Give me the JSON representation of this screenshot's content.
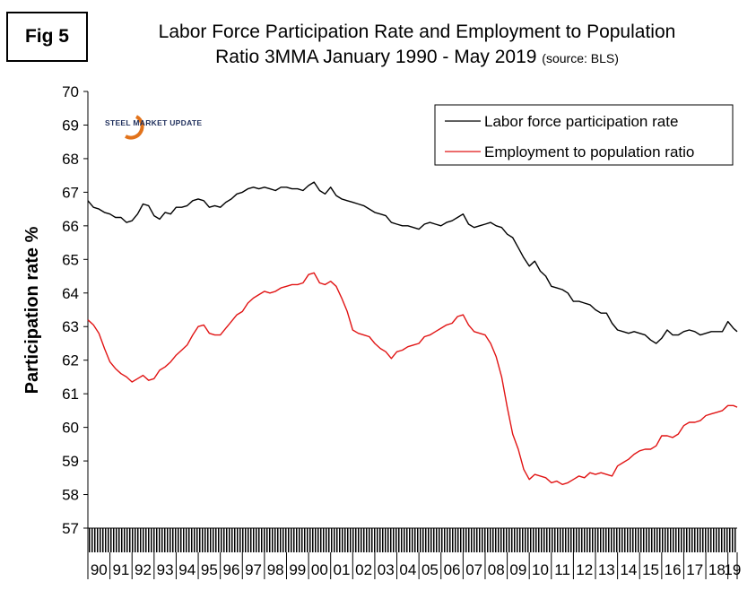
{
  "figure_label": "Fig 5",
  "title_line1": "Labor Force Participation Rate and Employment to Population",
  "title_line2": "Ratio 3MMA January 1990 - May 2019",
  "title_source": "(source: BLS)",
  "logo": {
    "text": "STEEL MARKET UPDATE",
    "color": "#e2731b"
  },
  "chart_data": {
    "type": "line",
    "ylabel": "Participation rate %",
    "xlabel": "",
    "ylim": [
      57,
      70
    ],
    "yticks": [
      57,
      58,
      59,
      60,
      61,
      62,
      63,
      64,
      65,
      66,
      67,
      68,
      69,
      70
    ],
    "xlim": [
      1990.0,
      2019.42
    ],
    "xticklabels": [
      "90",
      "91",
      "92",
      "93",
      "94",
      "95",
      "96",
      "97",
      "98",
      "99",
      "00",
      "01",
      "02",
      "03",
      "04",
      "05",
      "06",
      "07",
      "08",
      "09",
      "10",
      "11",
      "12",
      "13",
      "14",
      "15",
      "16",
      "17",
      "18",
      "19"
    ],
    "grid": false,
    "legend_position": "top-right",
    "series": [
      {
        "name": "Labor force participation rate",
        "color": "#000000",
        "points": [
          [
            1990.0,
            66.75
          ],
          [
            1990.25,
            66.55
          ],
          [
            1990.5,
            66.5
          ],
          [
            1990.75,
            66.4
          ],
          [
            1991.0,
            66.35
          ],
          [
            1991.25,
            66.25
          ],
          [
            1991.5,
            66.25
          ],
          [
            1991.75,
            66.1
          ],
          [
            1992.0,
            66.15
          ],
          [
            1992.25,
            66.35
          ],
          [
            1992.5,
            66.65
          ],
          [
            1992.75,
            66.6
          ],
          [
            1993.0,
            66.3
          ],
          [
            1993.25,
            66.2
          ],
          [
            1993.5,
            66.4
          ],
          [
            1993.75,
            66.35
          ],
          [
            1994.0,
            66.55
          ],
          [
            1994.25,
            66.55
          ],
          [
            1994.5,
            66.6
          ],
          [
            1994.75,
            66.75
          ],
          [
            1995.0,
            66.8
          ],
          [
            1995.25,
            66.75
          ],
          [
            1995.5,
            66.55
          ],
          [
            1995.75,
            66.6
          ],
          [
            1996.0,
            66.55
          ],
          [
            1996.25,
            66.7
          ],
          [
            1996.5,
            66.8
          ],
          [
            1996.75,
            66.95
          ],
          [
            1997.0,
            67.0
          ],
          [
            1997.25,
            67.1
          ],
          [
            1997.5,
            67.15
          ],
          [
            1997.75,
            67.1
          ],
          [
            1998.0,
            67.15
          ],
          [
            1998.25,
            67.1
          ],
          [
            1998.5,
            67.05
          ],
          [
            1998.75,
            67.15
          ],
          [
            1999.0,
            67.15
          ],
          [
            1999.25,
            67.1
          ],
          [
            1999.5,
            67.1
          ],
          [
            1999.75,
            67.05
          ],
          [
            2000.0,
            67.2
          ],
          [
            2000.25,
            67.3
          ],
          [
            2000.5,
            67.05
          ],
          [
            2000.75,
            66.95
          ],
          [
            2001.0,
            67.15
          ],
          [
            2001.25,
            66.9
          ],
          [
            2001.5,
            66.8
          ],
          [
            2001.75,
            66.75
          ],
          [
            2002.0,
            66.7
          ],
          [
            2002.25,
            66.65
          ],
          [
            2002.5,
            66.6
          ],
          [
            2002.75,
            66.5
          ],
          [
            2003.0,
            66.4
          ],
          [
            2003.25,
            66.35
          ],
          [
            2003.5,
            66.3
          ],
          [
            2003.75,
            66.1
          ],
          [
            2004.0,
            66.05
          ],
          [
            2004.25,
            66.0
          ],
          [
            2004.5,
            66.0
          ],
          [
            2004.75,
            65.95
          ],
          [
            2005.0,
            65.9
          ],
          [
            2005.25,
            66.05
          ],
          [
            2005.5,
            66.1
          ],
          [
            2005.75,
            66.05
          ],
          [
            2006.0,
            66.0
          ],
          [
            2006.25,
            66.1
          ],
          [
            2006.5,
            66.15
          ],
          [
            2006.75,
            66.25
          ],
          [
            2007.0,
            66.35
          ],
          [
            2007.25,
            66.05
          ],
          [
            2007.5,
            65.95
          ],
          [
            2007.75,
            66.0
          ],
          [
            2008.0,
            66.05
          ],
          [
            2008.25,
            66.1
          ],
          [
            2008.5,
            66.0
          ],
          [
            2008.75,
            65.95
          ],
          [
            2009.0,
            65.75
          ],
          [
            2009.25,
            65.65
          ],
          [
            2009.5,
            65.35
          ],
          [
            2009.75,
            65.05
          ],
          [
            2010.0,
            64.8
          ],
          [
            2010.25,
            64.95
          ],
          [
            2010.5,
            64.65
          ],
          [
            2010.75,
            64.5
          ],
          [
            2011.0,
            64.2
          ],
          [
            2011.25,
            64.15
          ],
          [
            2011.5,
            64.1
          ],
          [
            2011.75,
            64.0
          ],
          [
            2012.0,
            63.75
          ],
          [
            2012.25,
            63.75
          ],
          [
            2012.5,
            63.7
          ],
          [
            2012.75,
            63.65
          ],
          [
            2013.0,
            63.5
          ],
          [
            2013.25,
            63.4
          ],
          [
            2013.5,
            63.4
          ],
          [
            2013.75,
            63.1
          ],
          [
            2014.0,
            62.9
          ],
          [
            2014.25,
            62.85
          ],
          [
            2014.5,
            62.8
          ],
          [
            2014.75,
            62.85
          ],
          [
            2015.0,
            62.8
          ],
          [
            2015.25,
            62.75
          ],
          [
            2015.5,
            62.6
          ],
          [
            2015.75,
            62.5
          ],
          [
            2016.0,
            62.65
          ],
          [
            2016.25,
            62.9
          ],
          [
            2016.5,
            62.75
          ],
          [
            2016.75,
            62.75
          ],
          [
            2017.0,
            62.85
          ],
          [
            2017.25,
            62.9
          ],
          [
            2017.5,
            62.85
          ],
          [
            2017.75,
            62.75
          ],
          [
            2018.0,
            62.8
          ],
          [
            2018.25,
            62.85
          ],
          [
            2018.5,
            62.85
          ],
          [
            2018.75,
            62.85
          ],
          [
            2019.0,
            63.15
          ],
          [
            2019.25,
            62.95
          ],
          [
            2019.42,
            62.85
          ]
        ]
      },
      {
        "name": "Employment to population ratio",
        "color": "#e11414",
        "points": [
          [
            1990.0,
            63.2
          ],
          [
            1990.25,
            63.05
          ],
          [
            1990.5,
            62.8
          ],
          [
            1990.75,
            62.35
          ],
          [
            1991.0,
            61.95
          ],
          [
            1991.25,
            61.75
          ],
          [
            1991.5,
            61.6
          ],
          [
            1991.75,
            61.5
          ],
          [
            1992.0,
            61.35
          ],
          [
            1992.25,
            61.45
          ],
          [
            1992.5,
            61.55
          ],
          [
            1992.75,
            61.4
          ],
          [
            1993.0,
            61.45
          ],
          [
            1993.25,
            61.7
          ],
          [
            1993.5,
            61.8
          ],
          [
            1993.75,
            61.95
          ],
          [
            1994.0,
            62.15
          ],
          [
            1994.25,
            62.3
          ],
          [
            1994.5,
            62.45
          ],
          [
            1994.75,
            62.75
          ],
          [
            1995.0,
            63.0
          ],
          [
            1995.25,
            63.05
          ],
          [
            1995.5,
            62.8
          ],
          [
            1995.75,
            62.75
          ],
          [
            1996.0,
            62.75
          ],
          [
            1996.25,
            62.95
          ],
          [
            1996.5,
            63.15
          ],
          [
            1996.75,
            63.35
          ],
          [
            1997.0,
            63.45
          ],
          [
            1997.25,
            63.7
          ],
          [
            1997.5,
            63.85
          ],
          [
            1997.75,
            63.95
          ],
          [
            1998.0,
            64.05
          ],
          [
            1998.25,
            64.0
          ],
          [
            1998.5,
            64.05
          ],
          [
            1998.75,
            64.15
          ],
          [
            1999.0,
            64.2
          ],
          [
            1999.25,
            64.25
          ],
          [
            1999.5,
            64.25
          ],
          [
            1999.75,
            64.3
          ],
          [
            2000.0,
            64.55
          ],
          [
            2000.25,
            64.6
          ],
          [
            2000.5,
            64.3
          ],
          [
            2000.75,
            64.25
          ],
          [
            2001.0,
            64.35
          ],
          [
            2001.25,
            64.2
          ],
          [
            2001.5,
            63.85
          ],
          [
            2001.75,
            63.45
          ],
          [
            2002.0,
            62.9
          ],
          [
            2002.25,
            62.8
          ],
          [
            2002.5,
            62.75
          ],
          [
            2002.75,
            62.7
          ],
          [
            2003.0,
            62.5
          ],
          [
            2003.25,
            62.35
          ],
          [
            2003.5,
            62.25
          ],
          [
            2003.75,
            62.05
          ],
          [
            2004.0,
            62.25
          ],
          [
            2004.25,
            62.3
          ],
          [
            2004.5,
            62.4
          ],
          [
            2004.75,
            62.45
          ],
          [
            2005.0,
            62.5
          ],
          [
            2005.25,
            62.7
          ],
          [
            2005.5,
            62.75
          ],
          [
            2005.75,
            62.85
          ],
          [
            2006.0,
            62.95
          ],
          [
            2006.25,
            63.05
          ],
          [
            2006.5,
            63.1
          ],
          [
            2006.75,
            63.3
          ],
          [
            2007.0,
            63.35
          ],
          [
            2007.25,
            63.05
          ],
          [
            2007.5,
            62.85
          ],
          [
            2007.75,
            62.8
          ],
          [
            2008.0,
            62.75
          ],
          [
            2008.25,
            62.5
          ],
          [
            2008.5,
            62.1
          ],
          [
            2008.75,
            61.5
          ],
          [
            2009.0,
            60.6
          ],
          [
            2009.25,
            59.8
          ],
          [
            2009.5,
            59.35
          ],
          [
            2009.75,
            58.75
          ],
          [
            2010.0,
            58.45
          ],
          [
            2010.25,
            58.6
          ],
          [
            2010.5,
            58.55
          ],
          [
            2010.75,
            58.5
          ],
          [
            2011.0,
            58.35
          ],
          [
            2011.25,
            58.4
          ],
          [
            2011.5,
            58.3
          ],
          [
            2011.75,
            58.35
          ],
          [
            2012.0,
            58.45
          ],
          [
            2012.25,
            58.55
          ],
          [
            2012.5,
            58.5
          ],
          [
            2012.75,
            58.65
          ],
          [
            2013.0,
            58.6
          ],
          [
            2013.25,
            58.65
          ],
          [
            2013.5,
            58.6
          ],
          [
            2013.75,
            58.55
          ],
          [
            2014.0,
            58.85
          ],
          [
            2014.25,
            58.95
          ],
          [
            2014.5,
            59.05
          ],
          [
            2014.75,
            59.2
          ],
          [
            2015.0,
            59.3
          ],
          [
            2015.25,
            59.35
          ],
          [
            2015.5,
            59.35
          ],
          [
            2015.75,
            59.45
          ],
          [
            2016.0,
            59.75
          ],
          [
            2016.25,
            59.75
          ],
          [
            2016.5,
            59.7
          ],
          [
            2016.75,
            59.8
          ],
          [
            2017.0,
            60.05
          ],
          [
            2017.25,
            60.15
          ],
          [
            2017.5,
            60.15
          ],
          [
            2017.75,
            60.2
          ],
          [
            2018.0,
            60.35
          ],
          [
            2018.25,
            60.4
          ],
          [
            2018.5,
            60.45
          ],
          [
            2018.75,
            60.5
          ],
          [
            2019.0,
            60.65
          ],
          [
            2019.25,
            60.65
          ],
          [
            2019.42,
            60.6
          ]
        ]
      }
    ]
  }
}
